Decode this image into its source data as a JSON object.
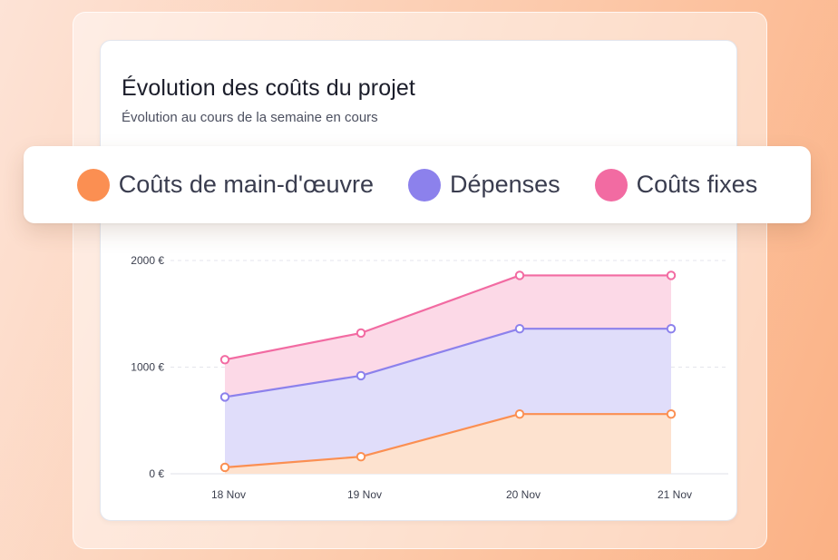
{
  "chart_data": {
    "type": "area",
    "stacked": true,
    "title": "Évolution des coûts du projet",
    "subtitle": "Évolution au cours de la semaine en cours",
    "categories": [
      "18 Nov",
      "19 Nov",
      "20 Nov",
      "21 Nov"
    ],
    "series": [
      {
        "name": "Coûts de main-d'œuvre",
        "color": "#fb8f52",
        "fill": "#fde2cf",
        "values": [
          60,
          160,
          560,
          560
        ]
      },
      {
        "name": "Dépenses",
        "color": "#8c81ec",
        "fill": "#e0ddfa",
        "values": [
          660,
          760,
          800,
          800
        ]
      },
      {
        "name": "Coûts fixes",
        "color": "#f26ba2",
        "fill": "#fcd9e7",
        "values": [
          350,
          400,
          500,
          500
        ]
      }
    ],
    "y_ticks": [
      "0 €",
      "1000 €",
      "2000 €"
    ],
    "ylim": [
      0,
      2000
    ],
    "grid": true,
    "legend_position": "top"
  }
}
